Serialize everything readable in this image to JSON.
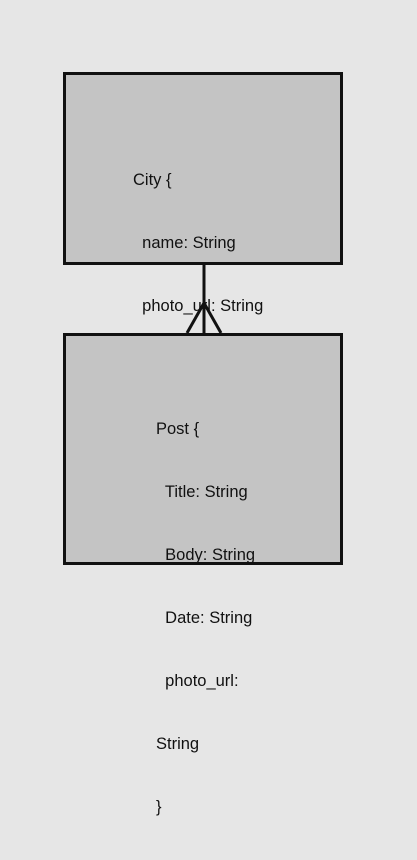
{
  "diagram": {
    "colors": {
      "background": "#e6e6e6",
      "entity_fill": "#c4c4c4",
      "stroke": "#111111"
    },
    "relationship": {
      "type": "one-to-many",
      "from": "City",
      "to": "Post"
    },
    "city": {
      "lines": [
        "City {",
        "  name: String",
        "  photo_url: String",
        "}"
      ]
    },
    "post": {
      "lines": [
        "Post {",
        "  Title: String",
        "  Body: String",
        "  Date: String",
        "  photo_url:",
        "String",
        "}"
      ]
    }
  }
}
